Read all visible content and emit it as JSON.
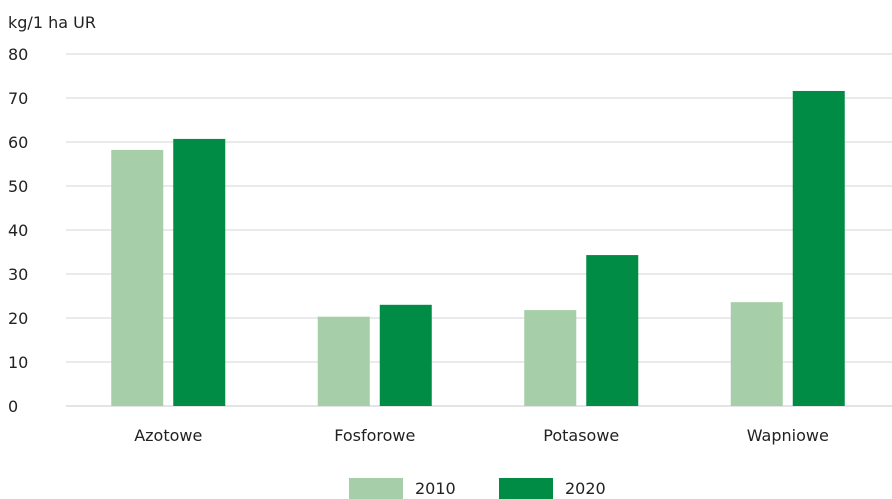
{
  "chart_data": {
    "type": "bar",
    "title": "",
    "xlabel": "",
    "ylabel": "kg/1 ha UR",
    "ylim": [
      0,
      80
    ],
    "yticks": [
      0,
      10,
      20,
      30,
      40,
      50,
      60,
      70,
      80
    ],
    "grid": true,
    "legend_position": "bottom",
    "categories": [
      "Azotowe",
      "Fosforowe",
      "Potasowe",
      "Wapniowe"
    ],
    "series": [
      {
        "name": "2010",
        "color": "#a5cea9",
        "values": [
          58.2,
          20.3,
          21.8,
          23.6
        ]
      },
      {
        "name": "2020",
        "color": "#008c44",
        "values": [
          60.7,
          23.0,
          34.3,
          71.6
        ]
      }
    ]
  }
}
